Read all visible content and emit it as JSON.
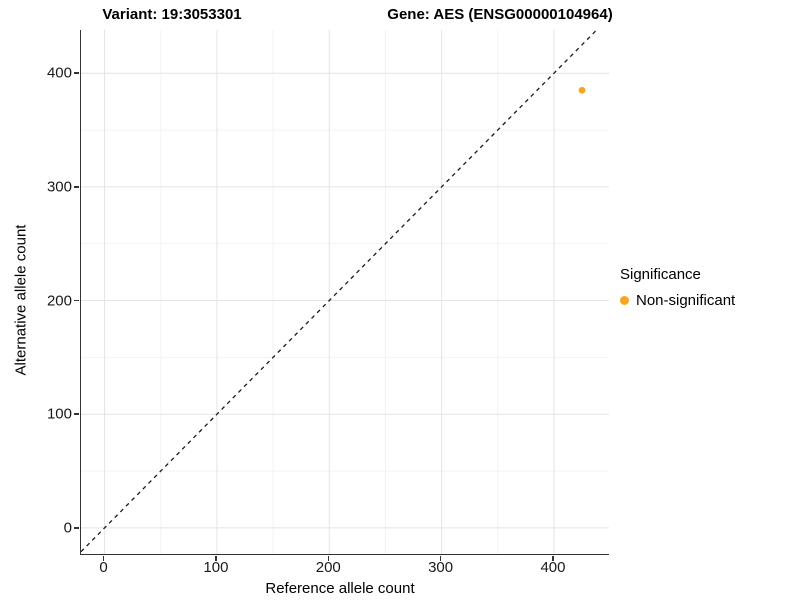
{
  "titles": {
    "variant": "Variant: 19:3053301",
    "gene": "Gene: AES (ENSG00000104964)"
  },
  "chart_data": {
    "type": "scatter",
    "title_left": "Variant: 19:3053301",
    "title_right": "Gene: AES (ENSG00000104964)",
    "xlabel": "Reference allele count",
    "ylabel": "Alternative allele count",
    "xlim": [
      -21,
      449
    ],
    "ylim": [
      -23,
      438
    ],
    "x_ticks": [
      0,
      100,
      200,
      300,
      400
    ],
    "y_ticks": [
      0,
      100,
      200,
      300,
      400
    ],
    "x_minor_ticks": [
      50,
      150,
      250,
      350
    ],
    "y_minor_ticks": [
      50,
      150,
      250,
      350
    ],
    "grid": "major+minor",
    "identity_line": {
      "slope": 1,
      "intercept": 0,
      "style": "dashed"
    },
    "series": [
      {
        "name": "Non-significant",
        "color": "#FAA51F",
        "points": [
          {
            "x": 425,
            "y": 385
          }
        ]
      }
    ],
    "legend": {
      "title": "Significance",
      "position": "right",
      "entries": [
        {
          "label": "Non-significant",
          "color": "#FAA51F"
        }
      ]
    }
  },
  "colors": {
    "accent_point": "#FAA51F",
    "grid_major": "#E4E4E4",
    "grid_minor": "#F1F1F1",
    "axis_line": "#333333",
    "identity_line": "#1A1A1A",
    "text": "#000000"
  }
}
